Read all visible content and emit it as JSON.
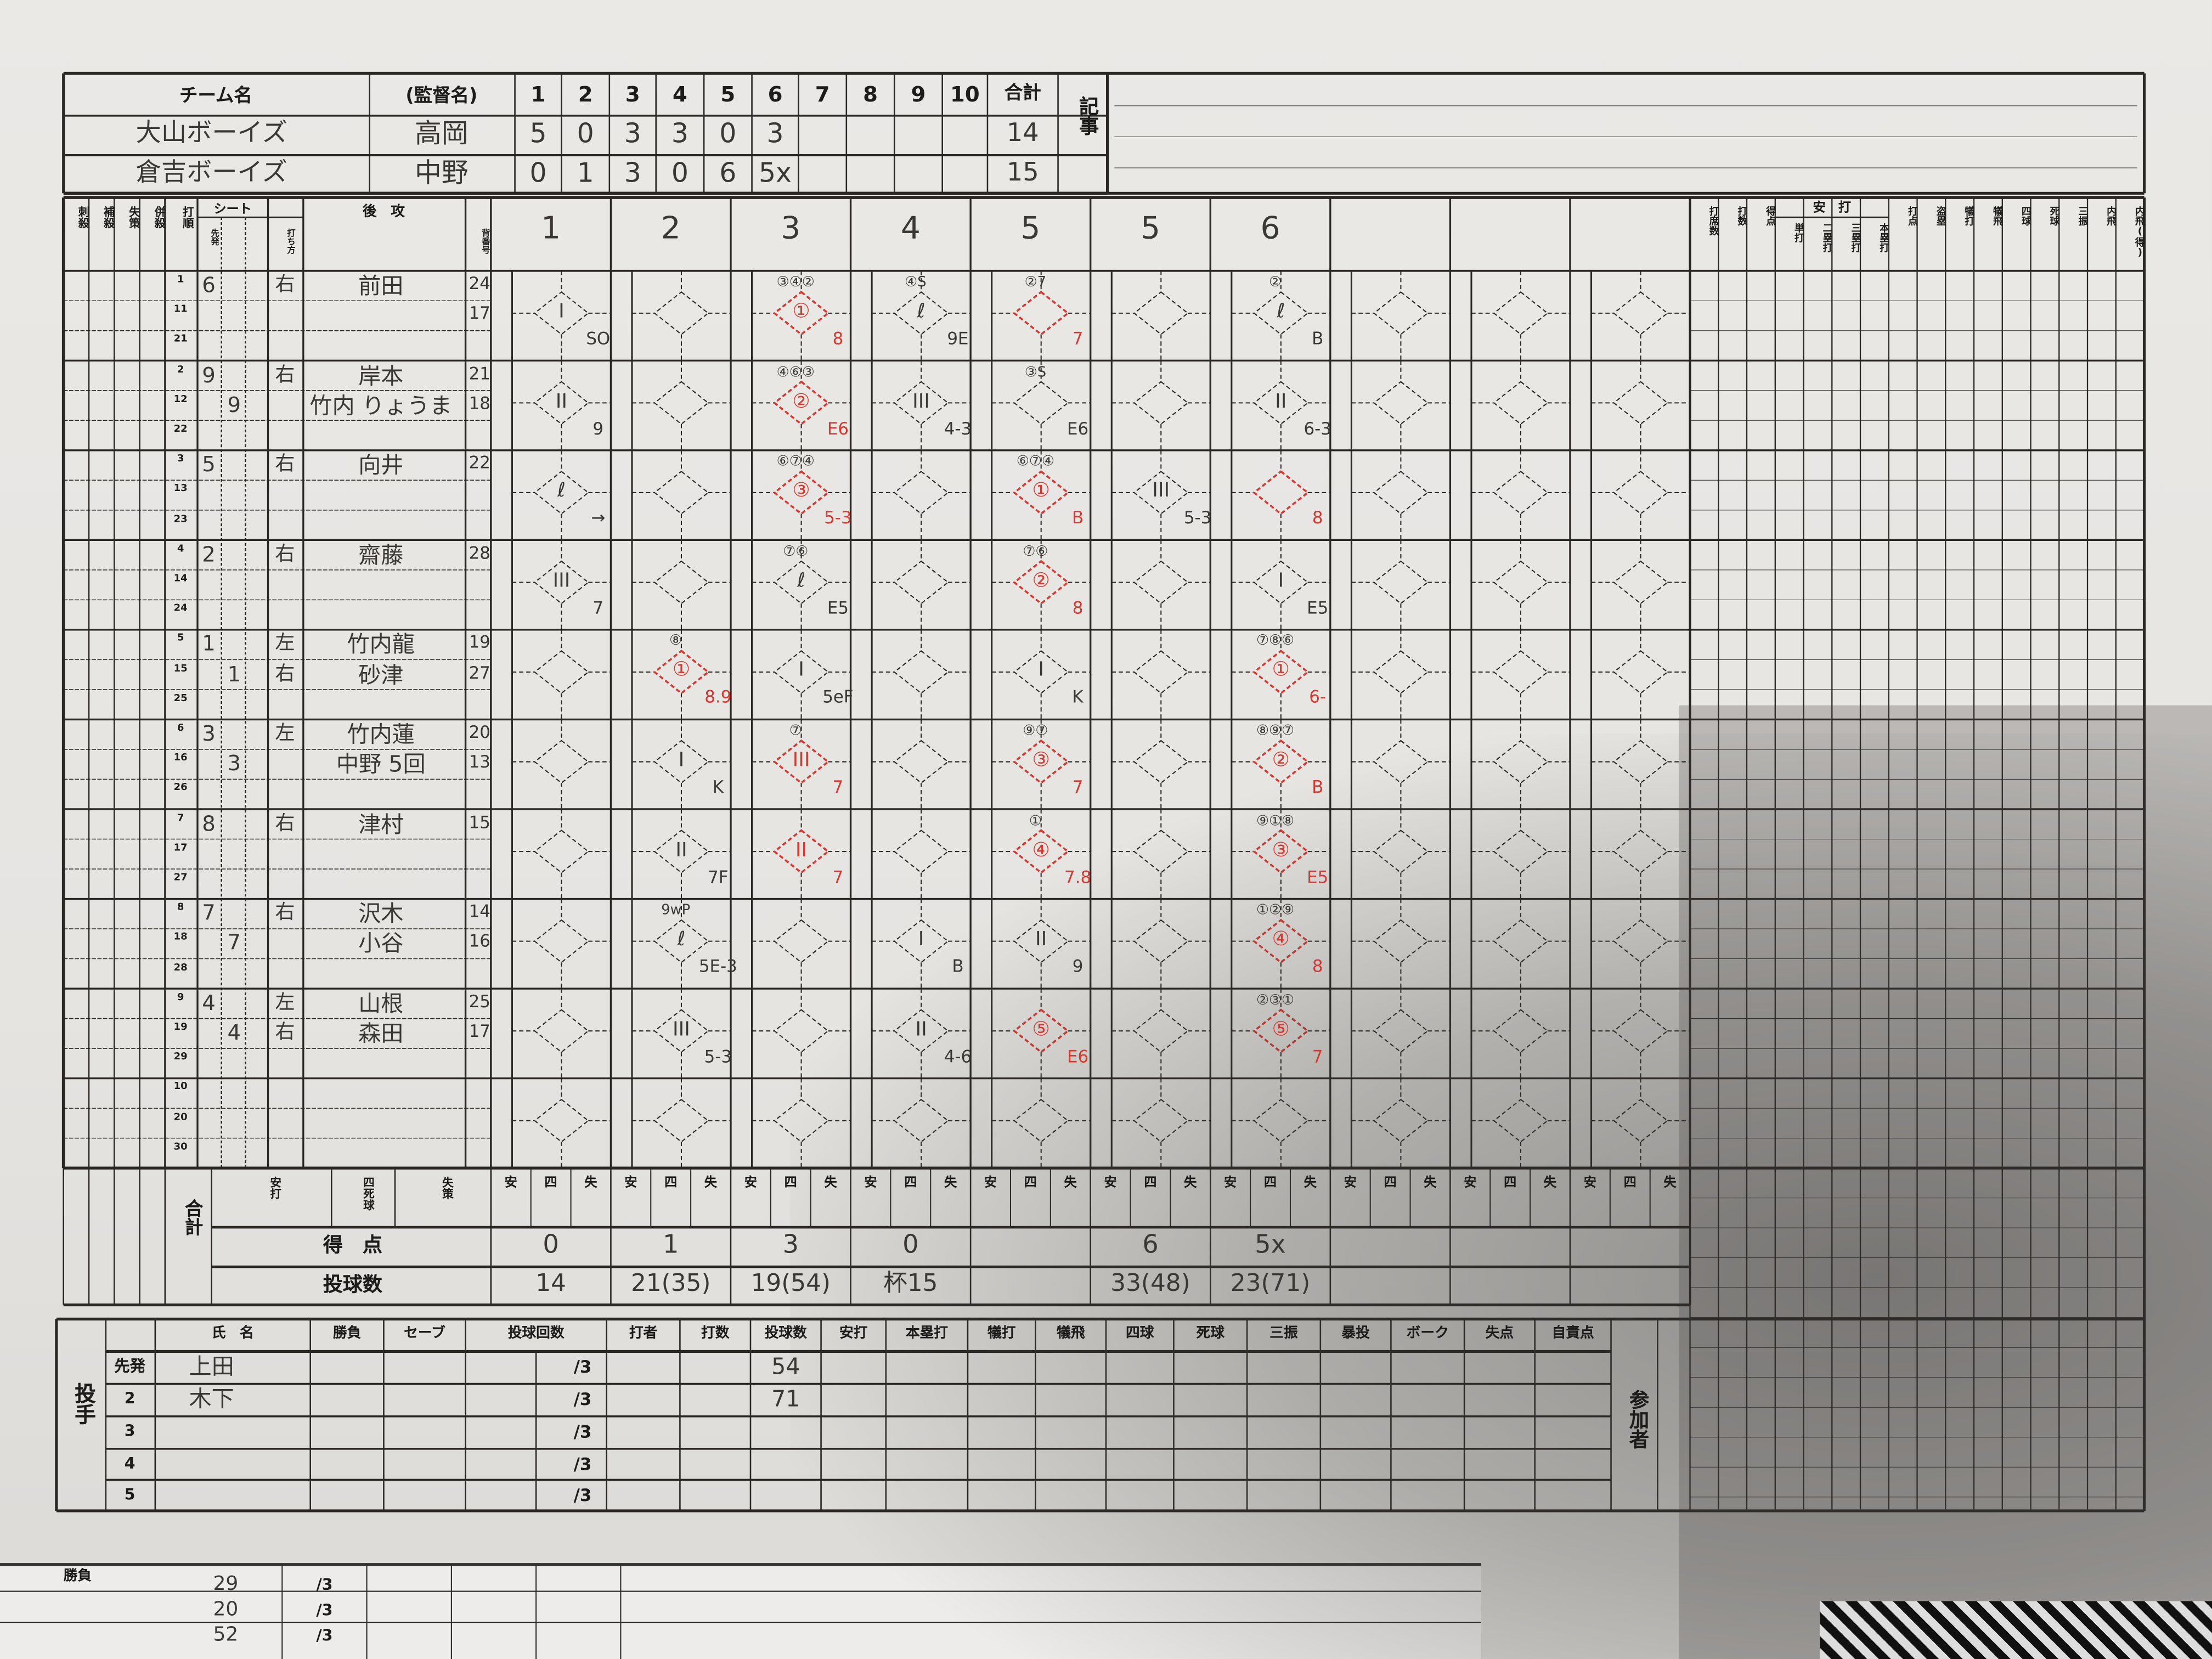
{
  "scoreboard": {
    "headers": {
      "team": "チーム名",
      "manager": "(監督名)",
      "innings": [
        "1",
        "2",
        "3",
        "4",
        "5",
        "6",
        "7",
        "8",
        "9",
        "10"
      ],
      "total": "合計",
      "notes": "記事"
    },
    "teams": [
      {
        "name": "大山ボーイズ",
        "manager": "高岡",
        "runs": [
          "5",
          "0",
          "3",
          "3",
          "0",
          "3",
          "",
          "",
          "",
          ""
        ],
        "total": "14"
      },
      {
        "name": "倉吉ボーイズ",
        "manager": "中野",
        "runs": [
          "0",
          "1",
          "3",
          "0",
          "6",
          "5x",
          "",
          "",
          "",
          ""
        ],
        "total": "15"
      }
    ]
  },
  "lineup_headers": {
    "putouts": "刺殺",
    "assists": "補殺",
    "errors": "失策",
    "double_plays": "併殺",
    "order": "打順",
    "position": "シート",
    "starter": "先発",
    "bats": "打ち方",
    "side": "後　攻",
    "uniform": "背番号"
  },
  "inning_labels": [
    "1",
    "2",
    "3",
    "4",
    "5",
    "5",
    "6",
    "",
    "",
    ""
  ],
  "slot_numbers": [
    [
      "1",
      "11",
      "21"
    ],
    [
      "2",
      "12",
      "22"
    ],
    [
      "3",
      "13",
      "23"
    ],
    [
      "4",
      "14",
      "24"
    ],
    [
      "5",
      "15",
      "25"
    ],
    [
      "6",
      "16",
      "26"
    ],
    [
      "7",
      "17",
      "27"
    ],
    [
      "8",
      "18",
      "28"
    ],
    [
      "9",
      "19",
      "29"
    ],
    [
      "10",
      "20",
      "30"
    ]
  ],
  "batters": [
    [
      {
        "pos": "6",
        "bats": "右",
        "name": "前田",
        "no": "24"
      },
      {
        "pos": "",
        "bats": "",
        "name": "",
        "no": "17"
      }
    ],
    [
      {
        "pos": "9",
        "bats": "右",
        "name": "岸本",
        "no": "21"
      },
      {
        "pos": "9",
        "bats": "",
        "name": "竹内 りょうま",
        "no": "18"
      }
    ],
    [
      {
        "pos": "5",
        "bats": "右",
        "name": "向井",
        "no": "22"
      }
    ],
    [
      {
        "pos": "2",
        "bats": "右",
        "name": "齋藤",
        "no": "28"
      }
    ],
    [
      {
        "pos": "1",
        "bats": "左",
        "name": "竹内龍",
        "no": "19"
      },
      {
        "pos": "1",
        "bats": "右",
        "name": "砂津",
        "no": "27"
      }
    ],
    [
      {
        "pos": "3",
        "bats": "左",
        "name": "竹内蓮",
        "no": "20"
      },
      {
        "pos": "3",
        "bats": "",
        "name": "中野 5回",
        "no": "13"
      }
    ],
    [
      {
        "pos": "8",
        "bats": "右",
        "name": "津村",
        "no": "15"
      }
    ],
    [
      {
        "pos": "7",
        "bats": "右",
        "name": "沢木",
        "no": "14"
      },
      {
        "pos": "7",
        "bats": "",
        "name": "小谷",
        "no": "16"
      }
    ],
    [
      {
        "pos": "4",
        "bats": "左",
        "name": "山根",
        "no": "25"
      },
      {
        "pos": "4",
        "bats": "右",
        "name": "森田",
        "no": "17"
      }
    ],
    []
  ],
  "plays": [
    [
      {
        "slot": 0,
        "center": "I",
        "result": "SO"
      },
      {
        "slot": 1,
        "center": "II",
        "result": "9"
      },
      {
        "slot": 2,
        "center": "ℓ",
        "result": "→"
      },
      {
        "slot": 3,
        "center": "III",
        "result": "7"
      }
    ],
    [
      {
        "slot": 4,
        "center": "①",
        "result": "8.9",
        "runners": "⑧",
        "red": true
      },
      {
        "slot": 5,
        "center": "I",
        "result": "K"
      },
      {
        "slot": 6,
        "center": "II",
        "result": "7F"
      },
      {
        "slot": 7,
        "center": "ℓ",
        "result": "5E-3",
        "runners": "9wP"
      },
      {
        "slot": 8,
        "center": "III",
        "result": "5-3"
      }
    ],
    [
      {
        "slot": 0,
        "center": "①",
        "result": "8",
        "runners": "③④②",
        "red": true
      },
      {
        "slot": 1,
        "center": "②",
        "result": "E6",
        "runners": "④⑥③",
        "red": true
      },
      {
        "slot": 2,
        "center": "③",
        "result": "5-3",
        "runners": "⑥⑦④",
        "red": true
      },
      {
        "slot": 3,
        "center": "ℓ",
        "result": "E5",
        "runners": "⑦⑥"
      },
      {
        "slot": 4,
        "center": "I",
        "result": "5eF"
      },
      {
        "slot": 5,
        "center": "III",
        "result": "7",
        "runners": "⑦",
        "red": true
      },
      {
        "slot": 6,
        "center": "II",
        "result": "7",
        "red": true
      }
    ],
    [
      {
        "slot": 0,
        "center": "ℓ",
        "result": "9E",
        "runners": "④S"
      },
      {
        "slot": 1,
        "center": "III",
        "result": "4-3"
      },
      {
        "slot": 7,
        "center": "I",
        "result": "B"
      },
      {
        "slot": 8,
        "center": "II",
        "result": "4-6"
      }
    ],
    [
      {
        "slot": 0,
        "center": "",
        "result": "7",
        "runners": "②7",
        "red": true
      },
      {
        "slot": 1,
        "center": "",
        "result": "E6",
        "runners": "③S"
      },
      {
        "slot": 2,
        "center": "①",
        "result": "B",
        "runners": "⑥⑦④",
        "red": true
      },
      {
        "slot": 3,
        "center": "②",
        "result": "8",
        "runners": "⑦⑥",
        "red": true
      },
      {
        "slot": 4,
        "center": "I",
        "result": "K"
      },
      {
        "slot": 5,
        "center": "③",
        "result": "7",
        "runners": "⑨⑦",
        "red": true
      },
      {
        "slot": 6,
        "center": "④",
        "result": "7.8",
        "runners": "①",
        "red": true
      },
      {
        "slot": 7,
        "center": "II",
        "result": "9"
      },
      {
        "slot": 8,
        "center": "⑤",
        "result": "E6",
        "red": true
      }
    ],
    [
      {
        "slot": 2,
        "center": "III",
        "result": "5-3"
      }
    ],
    [
      {
        "slot": 0,
        "center": "ℓ",
        "result": "B",
        "runners": "②"
      },
      {
        "slot": 1,
        "center": "II",
        "result": "6-3"
      },
      {
        "slot": 2,
        "center": "",
        "result": "8",
        "red": true
      },
      {
        "slot": 3,
        "center": "I",
        "result": "E5"
      },
      {
        "slot": 4,
        "center": "①",
        "result": "6-",
        "runners": "⑦⑧⑥",
        "red": true
      },
      {
        "slot": 5,
        "center": "②",
        "result": "B",
        "runners": "⑧⑨⑦",
        "red": true
      },
      {
        "slot": 6,
        "center": "③",
        "result": "E5",
        "runners": "⑨①⑧",
        "red": true
      },
      {
        "slot": 7,
        "center": "④",
        "result": "8",
        "runners": "①②⑨",
        "red": true
      },
      {
        "slot": 8,
        "center": "⑤",
        "result": "7",
        "runners": "②③①",
        "red": true
      }
    ],
    [],
    [],
    []
  ],
  "stats_headers": [
    "打席数",
    "打数",
    "得点",
    "単打",
    "二塁打",
    "三塁打",
    "本塁打",
    "打点",
    "盗塁",
    "犠打",
    "犠飛",
    "四球",
    "死球",
    "三振",
    "内飛",
    "内飛(得)"
  ],
  "stats_group": "安　打",
  "totals": {
    "label": "合計",
    "sub_headers": [
      "安打",
      "四死球",
      "失策"
    ],
    "per_inning_headers": [
      "安",
      "四",
      "失"
    ],
    "runs_label": "得　点",
    "pitches_label": "投球数",
    "runs": [
      "0",
      "1",
      "3",
      "0",
      "",
      "6",
      "5x",
      "",
      "",
      ""
    ],
    "pitches": [
      "14",
      "21(35)",
      "19(54)",
      "杯15",
      "",
      "33(48)",
      "23(71)",
      "",
      "",
      ""
    ]
  },
  "pitchers": {
    "side_label": "投手",
    "headers": [
      "氏　名",
      "勝負",
      "セーブ",
      "投球回数",
      "打者",
      "打数",
      "投球数",
      "安打",
      "本塁打",
      "犠打",
      "犠飛",
      "四球",
      "死球",
      "三振",
      "暴投",
      "ボーク",
      "失点",
      "自責点"
    ],
    "participants_label": "参加者",
    "rows": [
      {
        "num": "先発",
        "name": "上田",
        "innings": "/3",
        "pitches": "54"
      },
      {
        "num": "2",
        "name": "木下",
        "innings": "/3",
        "pitches": "71"
      },
      {
        "num": "3",
        "name": "",
        "innings": "/3",
        "pitches": ""
      },
      {
        "num": "4",
        "name": "",
        "innings": "/3",
        "pitches": ""
      },
      {
        "num": "5",
        "name": "",
        "innings": "/3",
        "pitches": ""
      }
    ]
  },
  "under_sheet": {
    "label": "勝負",
    "values": [
      "29",
      "20",
      "52"
    ],
    "innings": [
      "/3",
      "/3",
      "/3"
    ]
  },
  "colors": {
    "ink": "#1e1c1b",
    "pencil": "#4a4744",
    "red_pen": "#d23a32",
    "paper": "#ebe9e6"
  }
}
